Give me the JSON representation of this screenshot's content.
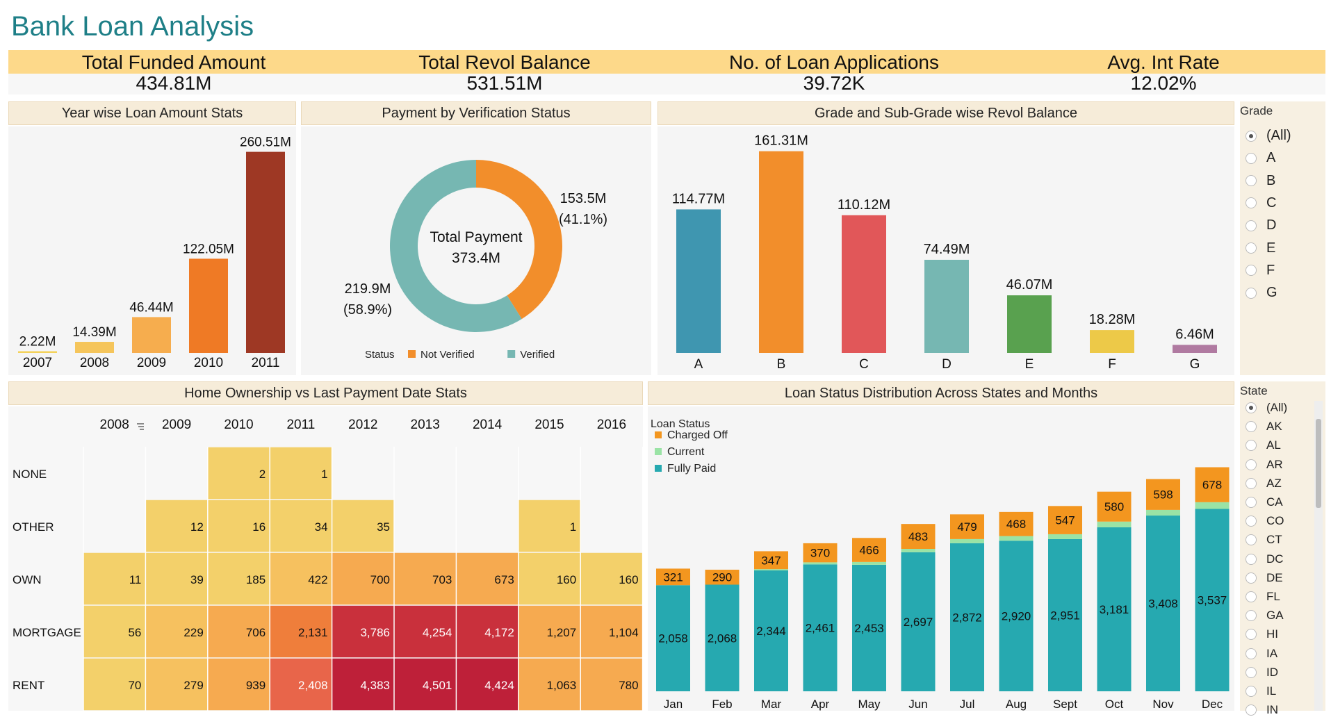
{
  "title": "Bank Loan Analysis",
  "kpis": [
    {
      "label": "Total Funded Amount",
      "value": "434.81M"
    },
    {
      "label": "Total Revol Balance",
      "value": "531.51M"
    },
    {
      "label": "No. of Loan Applications",
      "value": "39.72K"
    },
    {
      "label": "Avg. Int Rate",
      "value": "12.02%"
    }
  ],
  "panels": {
    "year": "Year wise Loan Amount Stats",
    "verification": "Payment by Verification Status",
    "grade": "Grade and Sub-Grade wise Revol Balance",
    "home": "Home Ownership vs Last Payment Date Stats",
    "status": "Loan Status Distribution Across States and Months"
  },
  "filters": {
    "grade": {
      "title": "Grade",
      "options": [
        "(All)",
        "A",
        "B",
        "C",
        "D",
        "E",
        "F",
        "G"
      ],
      "selected": "(All)"
    },
    "state": {
      "title": "State",
      "options": [
        "(All)",
        "AK",
        "AL",
        "AR",
        "AZ",
        "CA",
        "CO",
        "CT",
        "DC",
        "DE",
        "FL",
        "GA",
        "HI",
        "IA",
        "ID",
        "IL",
        "IN"
      ],
      "selected": "(All)"
    }
  },
  "chart_data": [
    {
      "type": "bar",
      "categories": [
        "2007",
        "2008",
        "2009",
        "2010",
        "2011"
      ],
      "values": [
        2.22,
        14.39,
        46.44,
        122.05,
        260.51
      ],
      "labels": [
        "2.22M",
        "14.39M",
        "46.44M",
        "122.05M",
        "260.51M"
      ],
      "colors": [
        "#f3d25a",
        "#f5c55b",
        "#f6ad4e",
        "#ef7a25",
        "#9e3824"
      ],
      "ylim": [
        0,
        270
      ]
    },
    {
      "type": "pie",
      "center_label": "Total Payment",
      "center_value": "373.4M",
      "legend_title": "Status",
      "slices": [
        {
          "name": "Not Verified",
          "value": 153.5,
          "label": "153.5M",
          "pct": "(41.1%)",
          "color": "#f28e2b"
        },
        {
          "name": "Verified",
          "value": 219.9,
          "label": "219.9M",
          "pct": "(58.9%)",
          "color": "#76b7b2"
        }
      ]
    },
    {
      "type": "bar",
      "categories": [
        "A",
        "B",
        "C",
        "D",
        "E",
        "F",
        "G"
      ],
      "values": [
        114.77,
        161.31,
        110.12,
        74.49,
        46.07,
        18.28,
        6.46
      ],
      "labels": [
        "114.77M",
        "161.31M",
        "110.12M",
        "74.49M",
        "46.07M",
        "18.28M",
        "6.46M"
      ],
      "colors": [
        "#3f96b0",
        "#f28e2b",
        "#e15759",
        "#76b7b2",
        "#59a14f",
        "#edc948",
        "#b07aa1"
      ],
      "ylim": [
        0,
        170
      ]
    },
    {
      "type": "heatmap",
      "columns": [
        "2008",
        "2009",
        "2010",
        "2011",
        "2012",
        "2013",
        "2014",
        "2015",
        "2016"
      ],
      "rows": [
        "NONE",
        "OTHER",
        "OWN",
        "MORTGAGE",
        "RENT"
      ],
      "values": [
        [
          null,
          null,
          2,
          1,
          null,
          null,
          null,
          null,
          null
        ],
        [
          null,
          12,
          16,
          34,
          35,
          null,
          null,
          1,
          null
        ],
        [
          11,
          39,
          185,
          422,
          700,
          703,
          673,
          160,
          160
        ],
        [
          56,
          229,
          706,
          2131,
          3786,
          4254,
          4172,
          1207,
          1104
        ],
        [
          70,
          279,
          939,
          2408,
          4383,
          4501,
          4424,
          1063,
          780
        ]
      ],
      "labels": [
        [
          "",
          "",
          "2",
          "1",
          "",
          "",
          "",
          "",
          ""
        ],
        [
          "",
          "12",
          "16",
          "34",
          "35",
          "",
          "",
          "1",
          ""
        ],
        [
          "11",
          "39",
          "185",
          "422",
          "700",
          "703",
          "673",
          "160",
          "160"
        ],
        [
          "56",
          "229",
          "706",
          "2,131",
          "3,786",
          "4,254",
          "4,172",
          "1,207",
          "1,104"
        ],
        [
          "70",
          "279",
          "939",
          "2,408",
          "4,383",
          "4,501",
          "4,424",
          "1,063",
          "780"
        ]
      ]
    },
    {
      "type": "bar",
      "stacked": true,
      "legend_title": "Loan Status",
      "categories": [
        "Jan",
        "Feb",
        "Mar",
        "Apr",
        "May",
        "Jun",
        "Jul",
        "Aug",
        "Sept",
        "Oct",
        "Nov",
        "Dec"
      ],
      "series": [
        {
          "name": "Fully Paid",
          "color": "#26a9b0",
          "values": [
            2058,
            2068,
            2344,
            2461,
            2453,
            2697,
            2872,
            2920,
            2951,
            3181,
            3408,
            3537
          ],
          "labels": [
            "2,058",
            "2,068",
            "2,344",
            "2,461",
            "2,453",
            "2,697",
            "2,872",
            "2,920",
            "2,951",
            "3,181",
            "3,408",
            "3,537"
          ]
        },
        {
          "name": "Current",
          "color": "#9ae3a5",
          "values": [
            0,
            0,
            25,
            40,
            55,
            65,
            80,
            90,
            95,
            110,
            110,
            130
          ],
          "labels": [
            "",
            "",
            "",
            "",
            "",
            "",
            "",
            "",
            "",
            "",
            "",
            ""
          ]
        },
        {
          "name": "Charged Off",
          "color": "#f3961f",
          "values": [
            321,
            290,
            347,
            370,
            466,
            483,
            479,
            468,
            547,
            580,
            598,
            678
          ],
          "labels": [
            "321",
            "290",
            "347",
            "370",
            "466",
            "483",
            "479",
            "468",
            "547",
            "580",
            "598",
            "678"
          ]
        }
      ],
      "ylim": [
        0,
        4500
      ]
    }
  ]
}
